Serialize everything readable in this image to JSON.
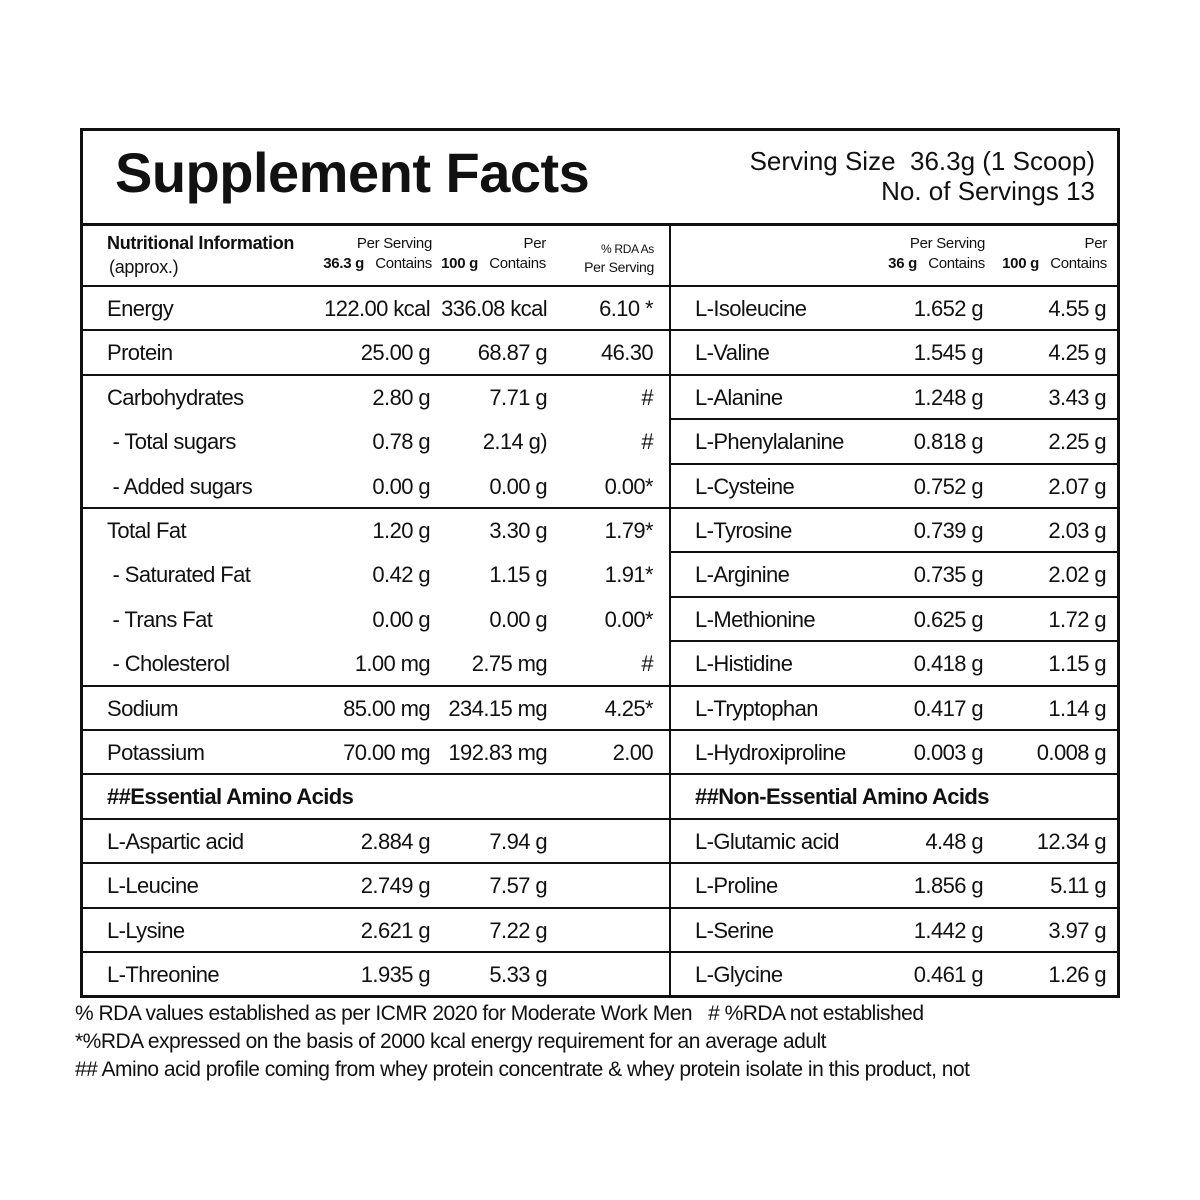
{
  "title": "Supplement Facts",
  "serving_size": "Serving Size  36.3g (1 Scoop)",
  "servings": "No. of Servings 13",
  "left_header": {
    "label": "Nutritional Information",
    "note": "(approx.)",
    "per_serving": [
      "Per Serving",
      "36.3 g",
      "Contains"
    ],
    "per_100g": [
      "Per",
      "100 g",
      "Contains"
    ],
    "rda": [
      "% RDA As",
      "Per Serving"
    ]
  },
  "right_header": {
    "per_serving": [
      "Per Serving",
      "36 g",
      "Contains"
    ],
    "per_100g": [
      "Per",
      "100 g",
      "Contains"
    ]
  },
  "nutrition_groups": [
    [
      [
        "Energy",
        "122.00 kcal",
        "336.08 kcal",
        "6.10 *"
      ]
    ],
    [
      [
        "Protein",
        "25.00 g",
        "68.87 g",
        "46.30"
      ]
    ],
    [
      [
        "Carbohydrates",
        "2.80 g",
        "7.71 g",
        "#"
      ],
      [
        " - Total sugars",
        "0.78 g",
        "2.14 g)",
        "#"
      ],
      [
        " - Added sugars",
        "0.00 g",
        "0.00 g",
        "0.00*"
      ]
    ],
    [
      [
        "Total Fat",
        "1.20 g",
        "3.30 g",
        "1.79*"
      ],
      [
        " - Saturated Fat",
        "0.42 g",
        "1.15 g",
        "1.91*"
      ],
      [
        " - Trans Fat",
        "0.00 g",
        "0.00 g",
        "0.00*"
      ],
      [
        " - Cholesterol",
        "1.00 mg",
        "2.75 mg",
        "#"
      ]
    ],
    [
      [
        "Sodium",
        "85.00 mg",
        "234.15 mg",
        "4.25*"
      ]
    ],
    [
      [
        "Potassium",
        "70.00 mg",
        "192.83 mg",
        "2.00"
      ]
    ]
  ],
  "essential_heading": "##Essential Amino Acids",
  "essential": [
    [
      "L-Aspartic acid",
      "2.884 g",
      "7.94 g"
    ],
    [
      "L-Leucine",
      "2.749 g",
      "7.57 g"
    ],
    [
      "L-Lysine",
      "2.621 g",
      "7.22 g"
    ],
    [
      "L-Threonine",
      "1.935 g",
      "5.33 g"
    ]
  ],
  "right_rows": [
    [
      "L-Isoleucine",
      "1.652 g",
      "4.55 g"
    ],
    [
      "L-Valine",
      "1.545 g",
      "4.25 g"
    ],
    [
      "L-Alanine",
      "1.248 g",
      "3.43 g"
    ],
    [
      "L-Phenylalanine",
      "0.818 g",
      "2.25 g"
    ],
    [
      "L-Cysteine",
      "0.752 g",
      "2.07 g"
    ],
    [
      "L-Tyrosine",
      "0.739 g",
      "2.03 g"
    ],
    [
      "L-Arginine",
      "0.735 g",
      "2.02 g"
    ],
    [
      "L-Methionine",
      "0.625 g",
      "1.72 g"
    ],
    [
      "L-Histidine",
      "0.418 g",
      "1.15 g"
    ],
    [
      "L-Tryptophan",
      "0.417 g",
      "1.14 g"
    ],
    [
      "L-Hydroxiproline",
      "0.003 g",
      "0.008 g"
    ]
  ],
  "non_essential_heading": "##Non-Essential Amino Acids",
  "non_essential": [
    [
      "L-Glutamic acid",
      "4.48 g",
      "12.34 g"
    ],
    [
      "L-Proline",
      "1.856 g",
      "5.11 g"
    ],
    [
      "L-Serine",
      "1.442 g",
      "3.97 g"
    ],
    [
      "L-Glycine",
      "0.461 g",
      "1.26 g"
    ]
  ],
  "footnotes": [
    "% RDA values established as per ICMR 2020 for Moderate Work Men   # %RDA not established",
    "*%RDA expressed on the basis of 2000 kcal energy requirement for an average adult",
    "## Amino acid profile coming from whey protein concentrate & whey protein isolate in this product, not"
  ]
}
